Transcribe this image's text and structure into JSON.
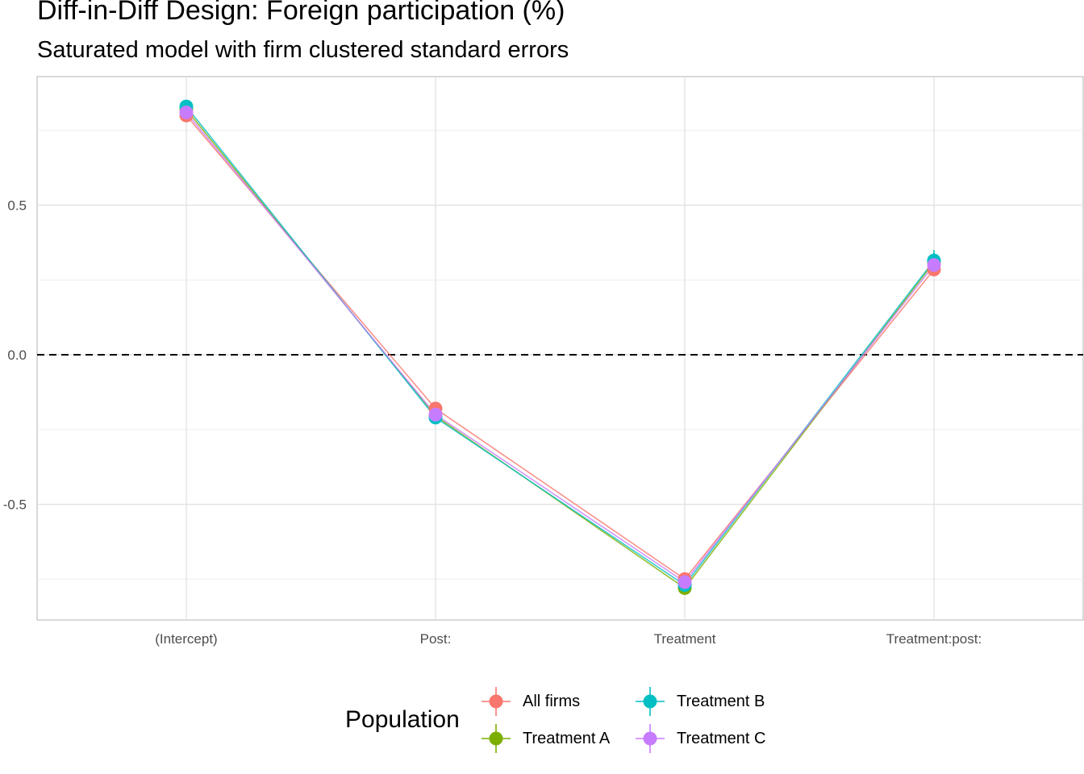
{
  "chart_data": {
    "type": "line",
    "title": "Diff-in-Diff Design: Foreign participation (%)",
    "subtitle": "Saturated model with firm clustered standard errors",
    "xlabel": "",
    "ylabel": "",
    "categories": [
      "(Intercept)",
      "Post:",
      "Treatment",
      "Treatment:post:"
    ],
    "y_ticks": [
      -0.5,
      0.0,
      0.5
    ],
    "y_tick_labels": [
      "-0.5",
      "0.0",
      "0.5"
    ],
    "ylim": [
      -0.88,
      0.92
    ],
    "reference_line": {
      "y": 0,
      "style": "dashed"
    },
    "grid": true,
    "legend_title": "Population",
    "legend_position": "bottom",
    "series": [
      {
        "name": "All firms",
        "color": "#F8766D",
        "values": [
          0.8,
          -0.18,
          -0.75,
          0.285
        ],
        "errors": [
          0.012,
          0.012,
          0.015,
          0.02
        ]
      },
      {
        "name": "Treatment A",
        "color": "#7CAE00",
        "values": [
          0.82,
          -0.205,
          -0.78,
          0.31
        ],
        "errors": [
          0.012,
          0.012,
          0.015,
          0.03
        ]
      },
      {
        "name": "Treatment B",
        "color": "#00BFC4",
        "values": [
          0.83,
          -0.21,
          -0.77,
          0.315
        ],
        "errors": [
          0.012,
          0.012,
          0.015,
          0.035
        ]
      },
      {
        "name": "Treatment C",
        "color": "#C77CFF",
        "values": [
          0.81,
          -0.2,
          -0.76,
          0.3
        ],
        "errors": [
          0.012,
          0.012,
          0.015,
          0.03
        ]
      }
    ]
  }
}
